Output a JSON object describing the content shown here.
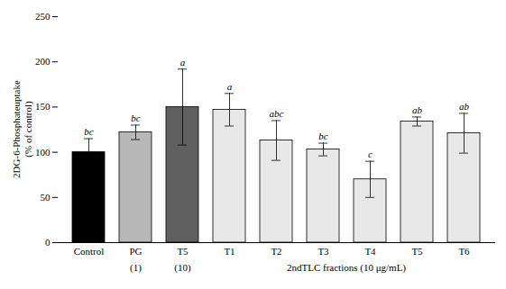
{
  "chart_data": {
    "type": "bar",
    "categories": [
      "Control",
      "PG",
      "T5",
      "T1",
      "T2",
      "T3",
      "T4",
      "T5",
      "T6"
    ],
    "values": [
      100,
      122,
      150,
      147,
      113,
      103,
      70,
      134,
      121
    ],
    "errors": [
      15,
      8,
      42,
      18,
      22,
      7,
      20,
      5,
      22
    ],
    "significance": [
      "bc",
      "bc",
      "a",
      "a",
      "abc",
      "bc",
      "c",
      "ab",
      "ab"
    ],
    "sublabels": [
      null,
      "(1)",
      "(10)",
      null,
      null,
      null,
      null,
      null,
      null
    ],
    "group_label": {
      "text": "2ndTLC fractions (10 μg/mL)",
      "first": 3,
      "last": 8
    },
    "colors": [
      "#000000",
      "#b8b8b8",
      "#606060",
      "#e8e8e8",
      "#e8e8e8",
      "#e8e8e8",
      "#e8e8e8",
      "#e8e8e8",
      "#e8e8e8"
    ],
    "ylabel": "2DG-6-Phosphateuptake\n(% of control)",
    "ylim": [
      0,
      250
    ],
    "yticks": [
      0,
      50,
      100,
      150,
      200,
      250
    ],
    "grid": false
  }
}
